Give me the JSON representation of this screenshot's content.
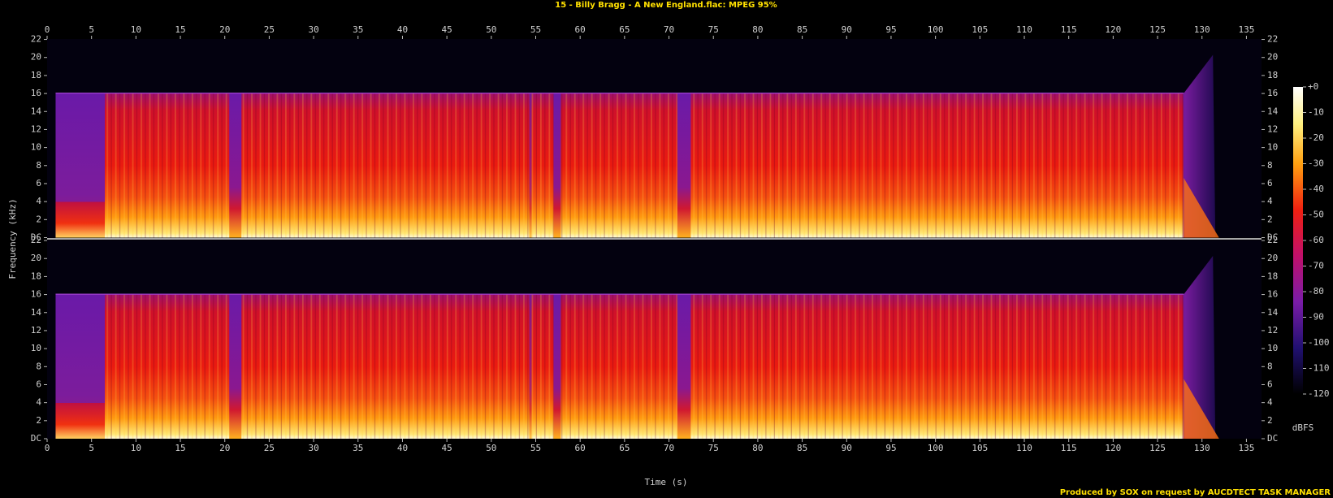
{
  "chart_data": {
    "type": "spectrogram",
    "title": "15 - Billy Bragg - A New England.flac: MPEG 95%",
    "xlabel": "Time (s)",
    "ylabel": "Frequency (kHz)",
    "xlim": [
      0,
      136.7
    ],
    "xticks": [
      0,
      5,
      10,
      15,
      20,
      25,
      30,
      35,
      40,
      45,
      50,
      55,
      60,
      65,
      70,
      75,
      80,
      85,
      90,
      95,
      100,
      105,
      110,
      115,
      120,
      125,
      130,
      135
    ],
    "ylim": [
      0,
      22.05
    ],
    "yticks": [
      {
        "value": 0,
        "label": "DC"
      },
      2,
      4,
      6,
      8,
      10,
      12,
      14,
      16,
      18,
      20,
      22
    ],
    "channels": 2,
    "colorbar": {
      "label": "dBFS",
      "lim": [
        -120,
        0
      ],
      "ticks": [
        {
          "value": 0,
          "label": "+0"
        },
        -10,
        -20,
        -30,
        -40,
        -50,
        -60,
        -70,
        -80,
        -90,
        -100,
        -110,
        -120
      ]
    },
    "footer": "Produced by SOX on request by AUCDTECT TASK MANAGER"
  }
}
